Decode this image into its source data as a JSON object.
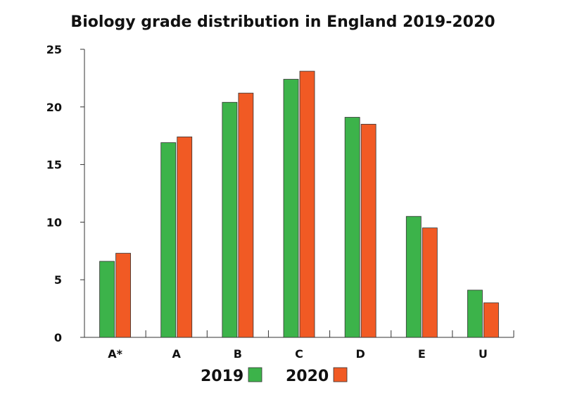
{
  "chart_data": {
    "type": "bar",
    "title": "Biology grade distribution in England 2019-2020",
    "xlabel": "",
    "ylabel": "",
    "categories": [
      "A*",
      "A",
      "B",
      "C",
      "D",
      "E",
      "U"
    ],
    "series": [
      {
        "name": "2019",
        "color": "#3cb34a",
        "values": [
          6.6,
          16.9,
          20.4,
          22.4,
          19.1,
          10.5,
          4.1
        ]
      },
      {
        "name": "2020",
        "color": "#f15a24",
        "values": [
          7.3,
          17.4,
          21.2,
          23.1,
          18.5,
          9.5,
          3.0
        ]
      }
    ],
    "ylim": [
      0,
      25
    ],
    "yticks": [
      "0",
      "5",
      "10",
      "15",
      "20",
      "25"
    ],
    "grid": false,
    "legend": "bottom-center"
  }
}
